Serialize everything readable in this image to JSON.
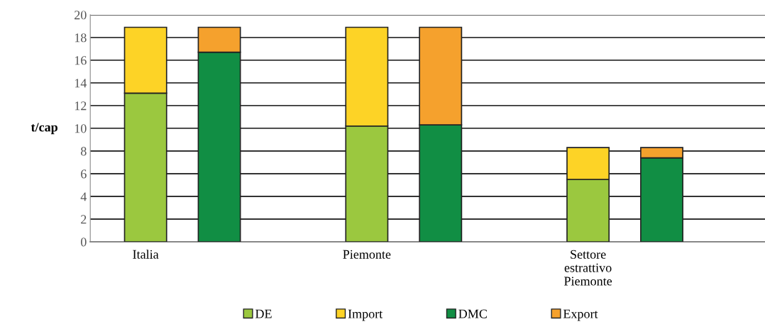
{
  "chart_data": {
    "type": "bar",
    "stacked": true,
    "ylabel": "t/cap",
    "categories": [
      "Italia",
      null,
      null,
      "Piemonte",
      null,
      null,
      "Settore\nestrattivo\nPiemonte",
      null,
      null
    ],
    "series": [
      {
        "name": "DE",
        "color": "#9bc83f",
        "values": [
          13.1,
          null,
          null,
          10.2,
          null,
          null,
          5.5,
          null,
          null
        ]
      },
      {
        "name": "Import",
        "color": "#fdd326",
        "values": [
          5.8,
          null,
          null,
          8.7,
          null,
          null,
          2.8,
          null,
          null
        ]
      },
      {
        "name": "DMC",
        "color": "#118e44",
        "values": [
          null,
          16.7,
          null,
          null,
          10.3,
          null,
          null,
          7.4,
          null
        ]
      },
      {
        "name": "Export",
        "color": "#f5a12d",
        "values": [
          null,
          2.2,
          null,
          null,
          8.6,
          null,
          null,
          0.9,
          null
        ]
      }
    ],
    "ylim": [
      0,
      20
    ],
    "yticks": [
      0,
      2,
      4,
      6,
      8,
      10,
      12,
      14,
      16,
      18,
      20
    ],
    "grid": "y",
    "legend": "bottom"
  }
}
